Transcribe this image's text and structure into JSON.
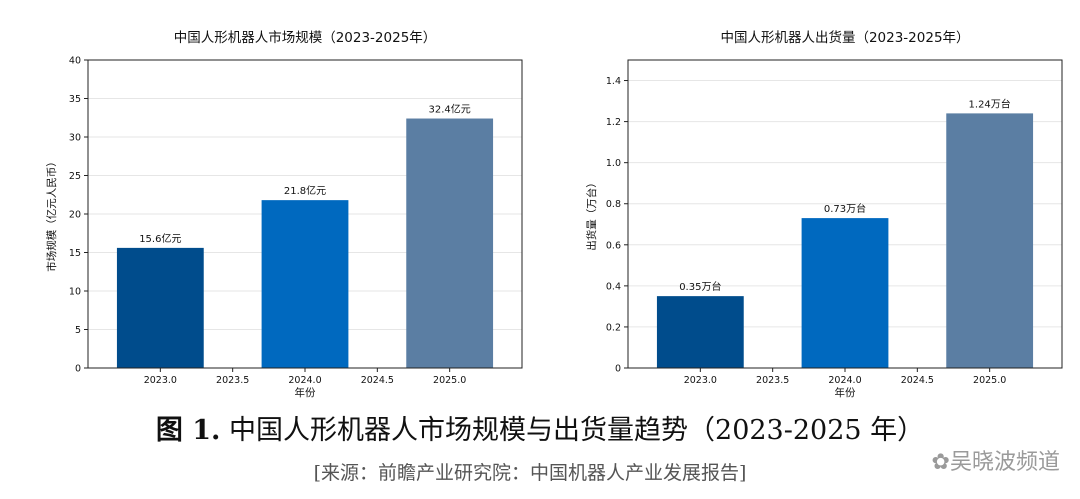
{
  "caption": {
    "label": "图 1.",
    "text": "中国人形机器人市场规模与出货量趋势（2023-2025 年）"
  },
  "source": "[来源：前瞻产业研究院：中国机器人产业发展报告]",
  "watermark": "吴晓波频道",
  "chart_data": [
    {
      "type": "bar",
      "title": "中国人形机器人市场规模（2023-2025年）",
      "xlabel": "年份",
      "ylabel": "市场规模（亿元人民币）",
      "x": [
        2023,
        2024,
        2025
      ],
      "values": [
        15.6,
        21.8,
        32.4
      ],
      "data_labels": [
        "15.6亿元",
        "21.8亿元",
        "32.4亿元"
      ],
      "colors": [
        "#004c8c",
        "#0069bf",
        "#5b7ea3"
      ],
      "xlim": [
        2022.5,
        2025.5
      ],
      "ylim": [
        0,
        40
      ],
      "xticks": [
        2023.0,
        2023.5,
        2024.0,
        2024.5,
        2025.0
      ],
      "xtick_labels": [
        "2023.0",
        "2023.5",
        "2024.0",
        "2024.5",
        "2025.0"
      ],
      "yticks": [
        0,
        5,
        10,
        15,
        20,
        25,
        30,
        35,
        40
      ],
      "ytick_labels": [
        "0",
        "5",
        "10",
        "15",
        "20",
        "25",
        "30",
        "35",
        "40"
      ],
      "grid": "y"
    },
    {
      "type": "bar",
      "title": "中国人形机器人出货量（2023-2025年）",
      "xlabel": "年份",
      "ylabel": "出货量（万台）",
      "x": [
        2023,
        2024,
        2025
      ],
      "values": [
        0.35,
        0.73,
        1.24
      ],
      "data_labels": [
        "0.35万台",
        "0.73万台",
        "1.24万台"
      ],
      "colors": [
        "#004c8c",
        "#0069bf",
        "#5b7ea3"
      ],
      "xlim": [
        2022.5,
        2025.5
      ],
      "ylim": [
        0,
        1.5
      ],
      "xticks": [
        2023.0,
        2023.5,
        2024.0,
        2024.5,
        2025.0
      ],
      "xtick_labels": [
        "2023.0",
        "2023.5",
        "2024.0",
        "2024.5",
        "2025.0"
      ],
      "yticks": [
        0,
        0.2,
        0.4,
        0.6,
        0.8,
        1.0,
        1.2,
        1.4
      ],
      "ytick_labels": [
        "0",
        "0.2",
        "0.4",
        "0.6",
        "0.8",
        "1.0",
        "1.2",
        "1.4"
      ],
      "grid": "y"
    }
  ]
}
